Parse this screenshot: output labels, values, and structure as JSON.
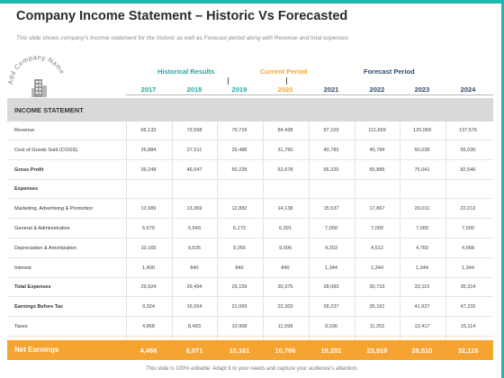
{
  "header": {
    "title": "Company Income Statement – Historic Vs Forecasted",
    "subtitle": "This slide shows company's Income statement for the historic as well as Forecast period along with Revenue and total expenses",
    "logo_text": "Add Company Name"
  },
  "periods": {
    "historical": "Historical Results",
    "current": "Current Period",
    "forecast": "Forecast Period"
  },
  "years": [
    "2017",
    "2018",
    "2019",
    "2020",
    "2021",
    "2022",
    "2023",
    "2024"
  ],
  "table": {
    "header_label": "INCOME STATEMENT",
    "rows": [
      {
        "label": "Revenue",
        "bold": false,
        "values": [
          "66,132",
          "73,558",
          "79,716",
          "84,438",
          "97,103",
          "111,669",
          "125,069",
          "137,576"
        ]
      },
      {
        "label": "Cost of Goods Sold (COGS)",
        "bold": false,
        "values": [
          "26,884",
          "27,511",
          "29,488",
          "31,760",
          "40,783",
          "45,784",
          "50,028",
          "55,030"
        ]
      },
      {
        "label": "Gross Profit",
        "bold": true,
        "values": [
          "39,248",
          "46,047",
          "50,228",
          "52,678",
          "56,320",
          "65,885",
          "75,041",
          "82,546"
        ]
      },
      {
        "label": "Expenses",
        "bold": true,
        "values": [
          "",
          "",
          "",
          "",
          "",
          "",
          "",
          ""
        ]
      },
      {
        "label": "Marketing, Advertising & Promotion",
        "bold": false,
        "values": [
          "12,689",
          "13,369",
          "12,882",
          "14,138",
          "15,537",
          "17,867",
          "20,011",
          "22,012"
        ]
      },
      {
        "label": "General & Administrative",
        "bold": false,
        "values": [
          "5,670",
          "5,649",
          "6,172",
          "6,391",
          "7,000",
          "7,000",
          "7,000",
          "7,000"
        ]
      },
      {
        "label": "Depreciation & Amortization",
        "bold": false,
        "values": [
          "10,165",
          "9,635",
          "9,265",
          "9,006",
          "4,203",
          "4,512",
          "4,760",
          "4,968"
        ]
      },
      {
        "label": "Interest",
        "bold": false,
        "values": [
          "1,400",
          "840",
          "840",
          "840",
          "1,344",
          "1,344",
          "1,344",
          "1,344"
        ]
      },
      {
        "label": "Total Expenses",
        "bold": true,
        "values": [
          "29,924",
          "29,494",
          "29,159",
          "30,375",
          "28,083",
          "30,723",
          "33,115",
          "35,314"
        ]
      },
      {
        "label": "Earnings Before Tax",
        "bold": true,
        "values": [
          "9,324",
          "16,554",
          "21,069",
          "22,303",
          "28,237",
          "35,161",
          "41,927",
          "47,232"
        ]
      },
      {
        "label": "Taxes",
        "bold": false,
        "values": [
          "4,858",
          "8,483",
          "10,908",
          "11,598",
          "9,036",
          "11,252",
          "13,417",
          "15,114"
        ]
      }
    ],
    "net": {
      "label": "Net Earnings",
      "values": [
        "4,466",
        "8,071",
        "10,161",
        "10,706",
        "19,201",
        "23,910",
        "28,510",
        "32,118"
      ]
    }
  },
  "footer": "This slide is 100% editable. Adapt it to your needs and capture your audience's attention.",
  "colors": {
    "teal": "#1fb8b0",
    "orange": "#f5a331",
    "navy": "#2e4a6b",
    "header_gray": "#d9d9d9"
  }
}
